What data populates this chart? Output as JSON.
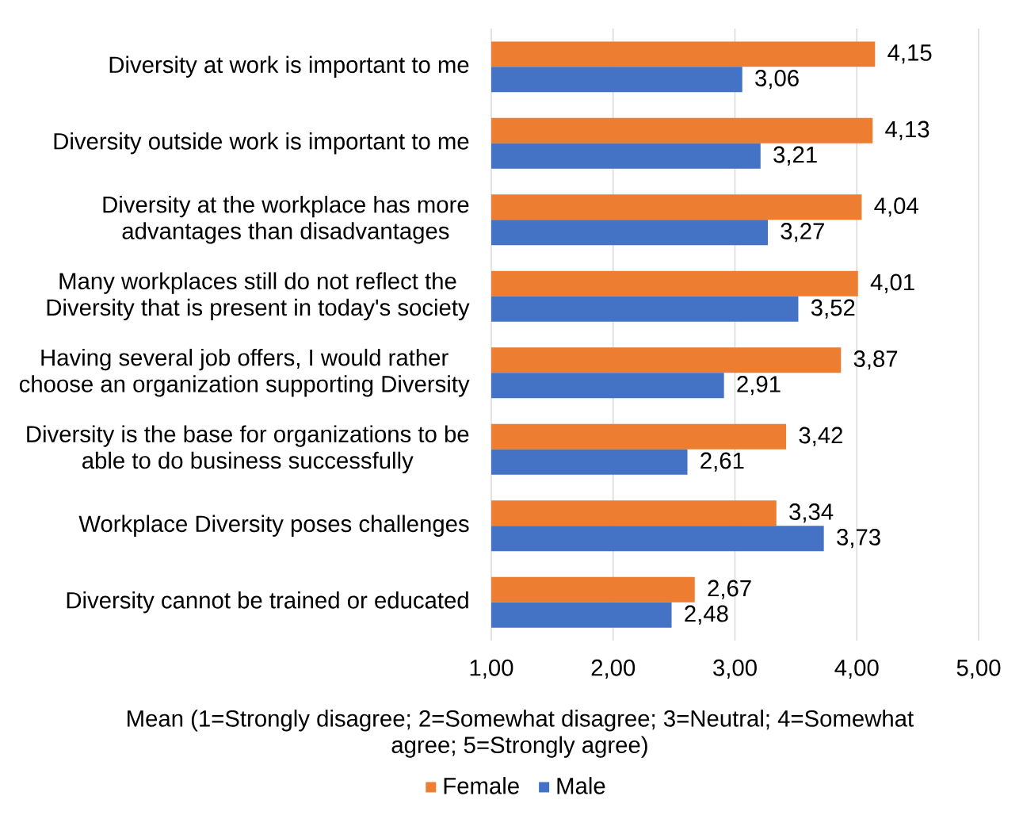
{
  "chart_data": {
    "type": "bar",
    "orientation": "horizontal",
    "categories": [
      "Diversity at work is important to me",
      "Diversity outside work is important to me",
      "Diversity at the workplace has more advantages than disadvantages",
      "Many workplaces still do not reflect the Diversity that is present in today's society",
      "Having several job offers, I would rather choose an organization supporting Diversity",
      "Diversity is the base for organizations to be able to do business successfully",
      "Workplace Diversity poses challenges",
      "Diversity cannot be trained or educated"
    ],
    "series": [
      {
        "name": "Female",
        "color": "#ed7d31",
        "values": [
          4.15,
          4.13,
          4.04,
          4.01,
          3.87,
          3.42,
          3.34,
          2.67
        ],
        "value_labels": [
          "4,15",
          "4,13",
          "4,04",
          "4,01",
          "3,87",
          "3,42",
          "3,34",
          "2,67"
        ]
      },
      {
        "name": "Male",
        "color": "#4472c4",
        "values": [
          3.06,
          3.21,
          3.27,
          3.52,
          2.91,
          2.61,
          3.73,
          2.48
        ],
        "value_labels": [
          "3,06",
          "3,21",
          "3,27",
          "3,52",
          "2,91",
          "2,61",
          "3,73",
          "2,48"
        ]
      }
    ],
    "xlim": [
      1,
      5
    ],
    "xticks": [
      {
        "value": 1,
        "label": "1,00"
      },
      {
        "value": 2,
        "label": "2,00"
      },
      {
        "value": 3,
        "label": "3,00"
      },
      {
        "value": 4,
        "label": "4,00"
      },
      {
        "value": 5,
        "label": "5,00"
      }
    ],
    "xlabel": "Mean (1=Strongly disagree; 2=Somewhat disagree; 3=Neutral; 4=Somewhat agree; 5=Strongly agree)",
    "grid": "x",
    "legend": "bottom"
  }
}
